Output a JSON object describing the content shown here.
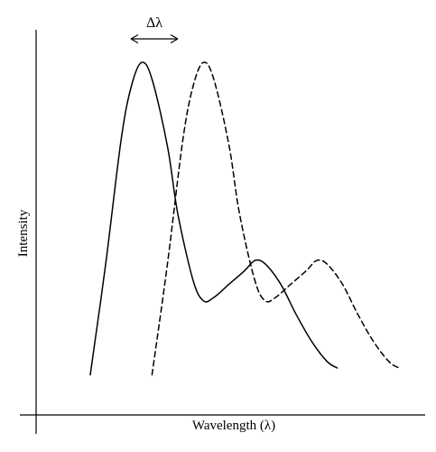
{
  "chart_data": {
    "type": "line",
    "title": "",
    "xlabel": "Wavelength (λ)",
    "ylabel": "Intensity",
    "annotation": "Δλ",
    "xlim": [
      0,
      100
    ],
    "ylim": [
      0,
      100
    ],
    "x_ticks": false,
    "y_ticks": false,
    "grid": false,
    "legend": "none",
    "series": [
      {
        "style": "solid",
        "points": [
          [
            0,
            2
          ],
          [
            3,
            35
          ],
          [
            6,
            72
          ],
          [
            8,
            88
          ],
          [
            10,
            95
          ],
          [
            12,
            90
          ],
          [
            15,
            70
          ],
          [
            17,
            50
          ],
          [
            20,
            30
          ],
          [
            22,
            24
          ],
          [
            24,
            25
          ],
          [
            27,
            29
          ],
          [
            30,
            33
          ],
          [
            32,
            36
          ],
          [
            34,
            35
          ],
          [
            37,
            29
          ],
          [
            40,
            20
          ],
          [
            43,
            12
          ],
          [
            46,
            6
          ],
          [
            48,
            4
          ]
        ]
      },
      {
        "style": "dashed",
        "points": [
          [
            12,
            2
          ],
          [
            15,
            35
          ],
          [
            18,
            72
          ],
          [
            20,
            88
          ],
          [
            22,
            95
          ],
          [
            24,
            90
          ],
          [
            27,
            70
          ],
          [
            29,
            50
          ],
          [
            32,
            30
          ],
          [
            34,
            24
          ],
          [
            36,
            25
          ],
          [
            39,
            29
          ],
          [
            42,
            33
          ],
          [
            44,
            36
          ],
          [
            46,
            35
          ],
          [
            49,
            29
          ],
          [
            52,
            20
          ],
          [
            55,
            12
          ],
          [
            58,
            6
          ],
          [
            60,
            4
          ]
        ]
      }
    ]
  }
}
